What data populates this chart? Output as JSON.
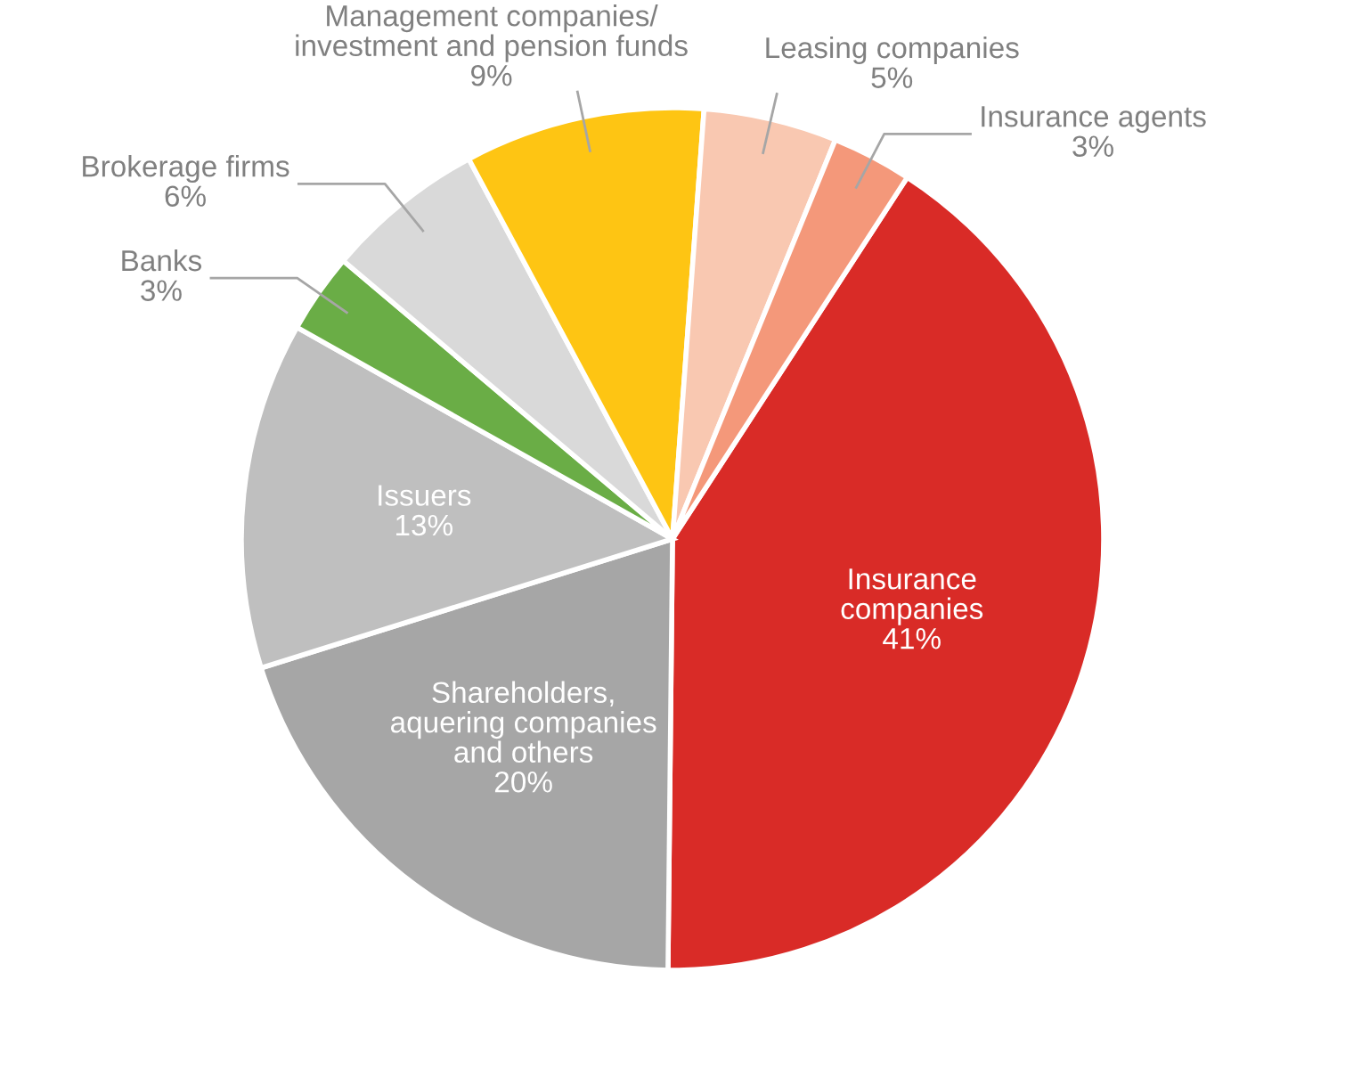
{
  "chart_data": {
    "type": "pie",
    "categories": [
      "Insurance\ncompanies",
      "Shareholders,\naquering companies\nand others",
      "Issuers",
      "Banks",
      "Brokerage firms",
      "Management companies/\ninvestment and pension funds",
      "Leasing companies",
      "Insurance agents"
    ],
    "values": [
      41,
      20,
      13,
      3,
      6,
      9,
      5,
      3
    ],
    "value_labels": [
      "41%",
      "20%",
      "13%",
      "3%",
      "6%",
      "9%",
      "5%",
      "3%"
    ],
    "colors": [
      "#d92b27",
      "#a6a6a6",
      "#bfbfbf",
      "#6aad46",
      "#d9d9d9",
      "#fec513",
      "#f9c8b1",
      "#f4987a"
    ],
    "legend": false
  }
}
